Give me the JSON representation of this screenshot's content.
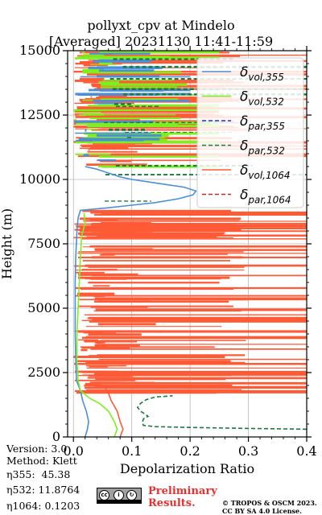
{
  "header": {
    "title_line1": "pollyxt_cpv at Mindelo",
    "title_line2": "[Averaged] 20231130 11:41-11:59"
  },
  "info": {
    "version": "Version: 3.0",
    "method": "Method: Klett",
    "eta355": "η355:  45.38",
    "eta532": "η532: 11.8764",
    "eta1064": "η1064: 0.1203"
  },
  "footer": {
    "preliminary_line1": "Preliminary",
    "preliminary_line2": "Results.",
    "copyright_line1": "© TROPOS & OSCM 2023.",
    "copyright_line2": "CC BY SA 4.0 License.",
    "cc_badge_icons": [
      "cc-icon",
      "by-icon",
      "sa-icon"
    ]
  },
  "chart_data": {
    "type": "line",
    "xlabel": "Depolarization Ratio",
    "ylabel": "Height (m)",
    "xlim": [
      -0.01,
      0.4
    ],
    "ylim": [
      0,
      15000
    ],
    "xticks": [
      0.0,
      0.1,
      0.2,
      0.3,
      0.4
    ],
    "xtick_labels": [
      "0.0",
      "0.1",
      "0.2",
      "0.3",
      "0.4"
    ],
    "yticks": [
      0,
      2500,
      5000,
      7500,
      10000,
      12500,
      15000
    ],
    "ytick_labels": [
      "0",
      "2500",
      "5000",
      "7500",
      "10000",
      "12500",
      "15000"
    ],
    "grid": true,
    "legend_position": "top-right",
    "series": [
      {
        "name": "δvol,355",
        "legend_main": "δ",
        "legend_sub": "vol,355",
        "color": "#4a90d9",
        "dashed": false,
        "points": [
          [
            0.02,
            0
          ],
          [
            0.024,
            300
          ],
          [
            0.026,
            600
          ],
          [
            0.022,
            1000
          ],
          [
            0.016,
            1400
          ],
          [
            0.012,
            1800
          ],
          [
            0.005,
            2200
          ],
          [
            0.004,
            3000
          ],
          [
            0.003,
            4000
          ],
          [
            0.003,
            5000
          ],
          [
            0.003,
            6000
          ],
          [
            0.004,
            7000
          ],
          [
            0.006,
            8000
          ],
          [
            0.008,
            8500
          ],
          [
            0.012,
            8800
          ],
          [
            0.06,
            8900
          ],
          [
            0.1,
            9000
          ],
          [
            0.14,
            9100
          ],
          [
            0.18,
            9250
          ],
          [
            0.205,
            9400
          ],
          [
            0.21,
            9550
          ],
          [
            0.19,
            9700
          ],
          [
            0.16,
            9800
          ],
          [
            0.13,
            9900
          ],
          [
            0.1,
            10000
          ],
          [
            0.08,
            10100
          ],
          [
            0.06,
            10250
          ],
          [
            0.04,
            10400
          ],
          [
            0.02,
            10500
          ]
        ]
      },
      {
        "name": "δvol,532",
        "legend_main": "δ",
        "legend_sub": "vol,532",
        "color": "#7fee1d",
        "dashed": false,
        "points": [
          [
            0.07,
            0
          ],
          [
            0.075,
            300
          ],
          [
            0.07,
            600
          ],
          [
            0.06,
            1000
          ],
          [
            0.045,
            1300
          ],
          [
            0.028,
            1500
          ],
          [
            0.012,
            1800
          ],
          [
            0.008,
            2200
          ],
          [
            0.006,
            3000
          ],
          [
            0.006,
            4000
          ],
          [
            0.008,
            5000
          ],
          [
            0.01,
            6000
          ],
          [
            0.012,
            7000
          ],
          [
            0.014,
            7800
          ],
          [
            0.02,
            8300
          ],
          [
            0.018,
            8700
          ]
        ]
      },
      {
        "name": "δpar,355",
        "legend_main": "δ",
        "legend_sub": "par,355",
        "color": "#1f2fcf",
        "dashed": true,
        "points": []
      },
      {
        "name": "δpar,532",
        "legend_main": "δ",
        "legend_sub": "par,532",
        "color": "#1a7a3a",
        "dashed": true,
        "points": [
          [
            0.4,
            300
          ],
          [
            0.3,
            330
          ],
          [
            0.2,
            370
          ],
          [
            0.14,
            400
          ],
          [
            0.12,
            450
          ],
          [
            0.118,
            550
          ],
          [
            0.12,
            700
          ],
          [
            0.128,
            800
          ],
          [
            0.122,
            900
          ],
          [
            0.115,
            1000
          ],
          [
            0.11,
            1150
          ],
          [
            0.115,
            1300
          ],
          [
            0.125,
            1450
          ],
          [
            0.14,
            1550
          ],
          [
            0.17,
            1600
          ]
        ]
      },
      {
        "name": "δvol,1064",
        "legend_main": "δ",
        "legend_sub": "vol,1064",
        "color": "#ff5a36",
        "dashed": false,
        "points": [
          [
            0.08,
            0
          ],
          [
            0.085,
            300
          ],
          [
            0.08,
            600
          ],
          [
            0.075,
            1000
          ],
          [
            0.065,
            1400
          ],
          [
            0.06,
            1700
          ],
          [
            0.055,
            1900
          ]
        ]
      },
      {
        "name": "δpar,1064",
        "legend_main": "δ",
        "legend_sub": "par,1064",
        "color": "#c0292e",
        "dashed": true,
        "points": []
      }
    ],
    "noise_bands": [
      {
        "series": "δvol,1064",
        "ymin": 1700,
        "ymax": 8800,
        "xmin": 0.0,
        "xmax": 0.4,
        "color": "#ff5a36",
        "count": 150
      },
      {
        "series": "δvol,1064",
        "ymin": 10400,
        "ymax": 15000,
        "xmin": 0.0,
        "xmax": 0.4,
        "color": "#ff5a36",
        "count": 90
      },
      {
        "series": "δvol,532",
        "ymin": 10400,
        "ymax": 15000,
        "xmin": 0.0,
        "xmax": 0.25,
        "color": "#7fee1d",
        "count": 45
      },
      {
        "series": "δvol,355",
        "ymin": 10400,
        "ymax": 15000,
        "xmin": 0.0,
        "xmax": 0.2,
        "color": "#4a90d9",
        "count": 25
      },
      {
        "series": "δpar,532",
        "ymin": 8800,
        "ymax": 15000,
        "xmin": 0.05,
        "xmax": 0.4,
        "color": "#1a7a3a",
        "count": 14
      }
    ]
  }
}
